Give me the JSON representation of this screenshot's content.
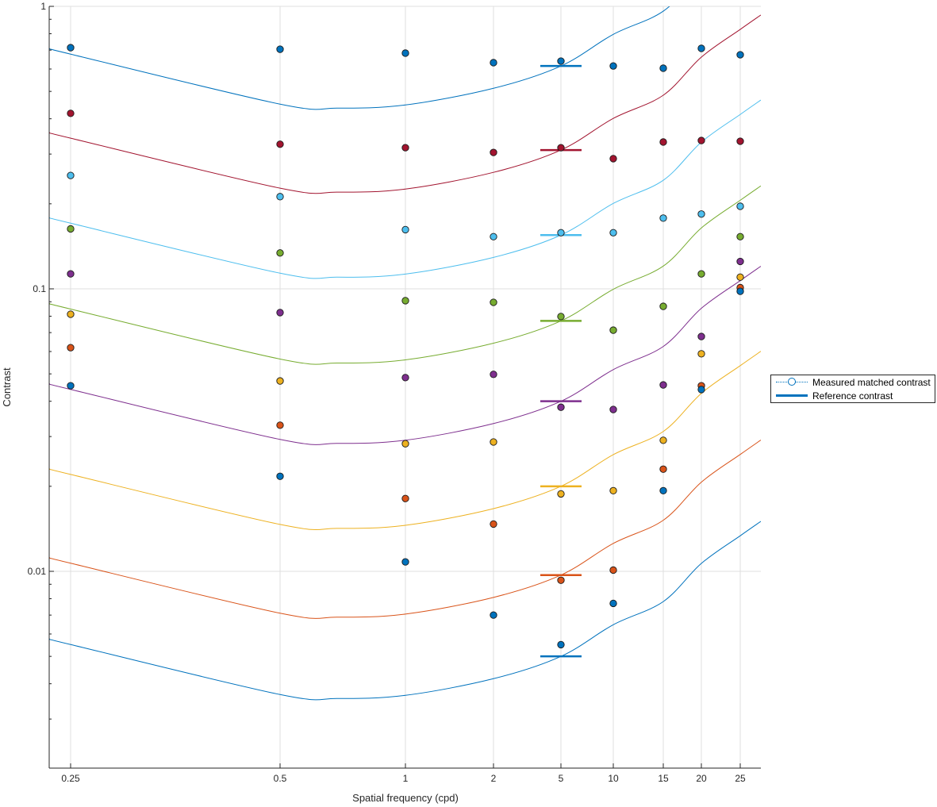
{
  "chart_data": {
    "type": "scatter",
    "xlabel": "Spatial frequency (cpd)",
    "ylabel": "Contrast",
    "yscale": "log",
    "ylim": [
      0.002,
      1
    ],
    "xlim": [
      0.233,
      28.1
    ],
    "grid": true,
    "x_ticks": [
      0.25,
      0.5,
      1,
      2,
      5,
      10,
      15,
      20,
      25
    ],
    "x_tick_labels": [
      "0.25",
      "0.5",
      "1",
      "2",
      "5",
      "10",
      "15",
      "20",
      "25"
    ],
    "y_ticks": [
      0.01,
      0.1,
      1
    ],
    "y_tick_labels": [
      "0.01",
      "0.1",
      "1"
    ],
    "legend": {
      "placement": "right",
      "entries": [
        "Measured matched contrast",
        "Reference contrast"
      ]
    },
    "reference_x": 5,
    "fit_shape": {
      "x": [
        0.233,
        0.25,
        0.5,
        0.686,
        1,
        2,
        5,
        10,
        15,
        20,
        25,
        28.1
      ],
      "log10_offset": [
        0.062,
        0.042,
        -0.135,
        -0.149,
        -0.138,
        -0.079,
        0,
        0.112,
        0.194,
        0.329,
        0.427,
        0.478
      ]
    },
    "series": [
      {
        "color": "#0072BD",
        "reference": 0.615,
        "values": [
          0.714,
          0.705,
          0.683,
          0.632,
          0.64,
          0.615,
          0.604,
          0.71,
          0.674
        ]
      },
      {
        "color": "#A2142F",
        "reference": 0.31,
        "values": [
          0.418,
          0.325,
          0.316,
          0.304,
          0.316,
          0.289,
          0.331,
          0.335,
          0.333
        ]
      },
      {
        "color": "#4DBEEE",
        "reference": 0.155,
        "values": [
          0.252,
          0.212,
          0.162,
          0.153,
          0.158,
          0.158,
          0.178,
          0.184,
          0.196
        ]
      },
      {
        "color": "#77AC30",
        "reference": 0.077,
        "values": [
          0.163,
          0.134,
          0.0908,
          0.0896,
          0.0798,
          0.0714,
          0.0867,
          0.113,
          0.153
        ]
      },
      {
        "color": "#7E2F8E",
        "reference": 0.04,
        "values": [
          0.113,
          0.0824,
          0.0485,
          0.0498,
          0.0381,
          0.0374,
          0.0457,
          0.0678,
          0.125
        ]
      },
      {
        "color": "#EDB120",
        "reference": 0.02,
        "values": [
          0.0813,
          0.0472,
          0.0283,
          0.0287,
          0.0188,
          0.0193,
          0.0291,
          0.0589,
          0.11
        ]
      },
      {
        "color": "#D95319",
        "reference": 0.0097,
        "values": [
          0.0619,
          0.0329,
          0.0181,
          0.0147,
          0.0093,
          0.0101,
          0.023,
          0.0454,
          0.101
        ]
      },
      {
        "color": "#0072BD",
        "reference": 0.005,
        "values": [
          0.0454,
          0.0217,
          0.0108,
          0.007,
          0.0055,
          0.0077,
          0.0193,
          0.044,
          0.098
        ]
      }
    ]
  }
}
